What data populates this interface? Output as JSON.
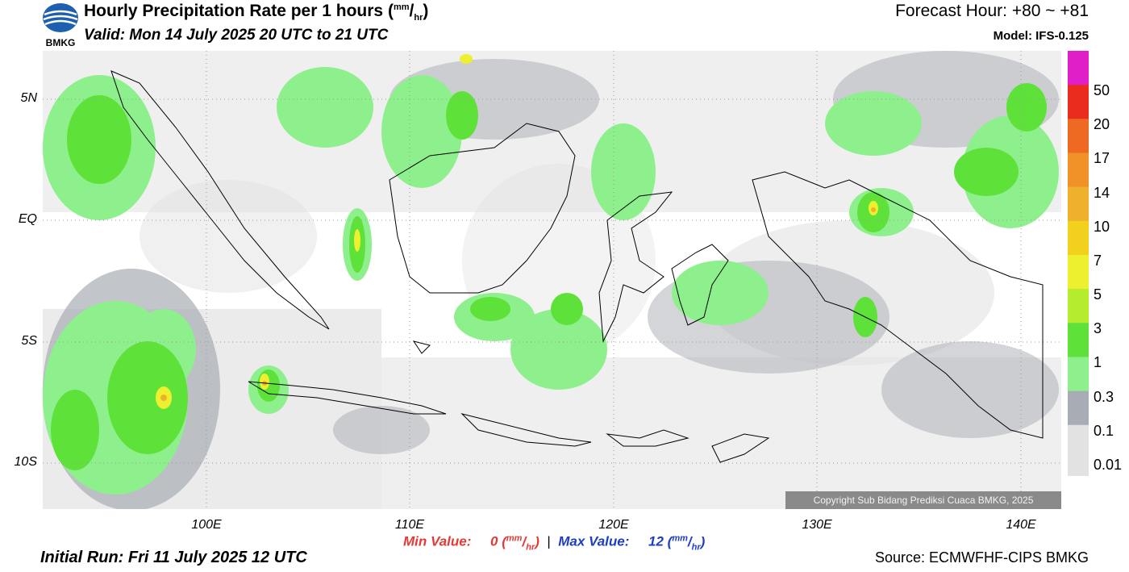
{
  "header": {
    "title": "Hourly Precipitation Rate per 1 hours",
    "title_unit_num": "mm",
    "title_unit_den": "hr",
    "valid": "Valid: Mon 14 July 2025 20 UTC to 21 UTC",
    "forecast_hour": "Forecast Hour: +80 ~ +81",
    "model": "Model: IFS-0.125",
    "logo_text": "BMKG"
  },
  "map": {
    "lat_labels": [
      "5N",
      "EQ",
      "5S",
      "10S"
    ],
    "lon_labels": [
      "100E",
      "110E",
      "120E",
      "130E",
      "140E"
    ],
    "copyright": "Copyright Sub Bidang Prediksi Cuaca BMKG, 2025"
  },
  "colorbar": {
    "labels": [
      "50",
      "20",
      "17",
      "14",
      "10",
      "7",
      "5",
      "3",
      "1",
      "0.3",
      "0.1",
      "0.01"
    ],
    "colors": [
      "#e01fc8",
      "#ea2c1f",
      "#ee6a22",
      "#f09228",
      "#efb02c",
      "#f2d01e",
      "#edf02e",
      "#b6ec2e",
      "#5ee23a",
      "#8ef08c",
      "#a8acb4",
      "#e2e2e2"
    ]
  },
  "footer": {
    "min_label": "Min Value:",
    "min_value": "0",
    "max_label": "Max Value:",
    "max_value": "12",
    "unit_num": "mm",
    "unit_den": "hr",
    "initial_run": "Initial Run: Fri 11 July 2025 12 UTC",
    "source": "Source: ECMWFHF-CIPS BMKG"
  }
}
